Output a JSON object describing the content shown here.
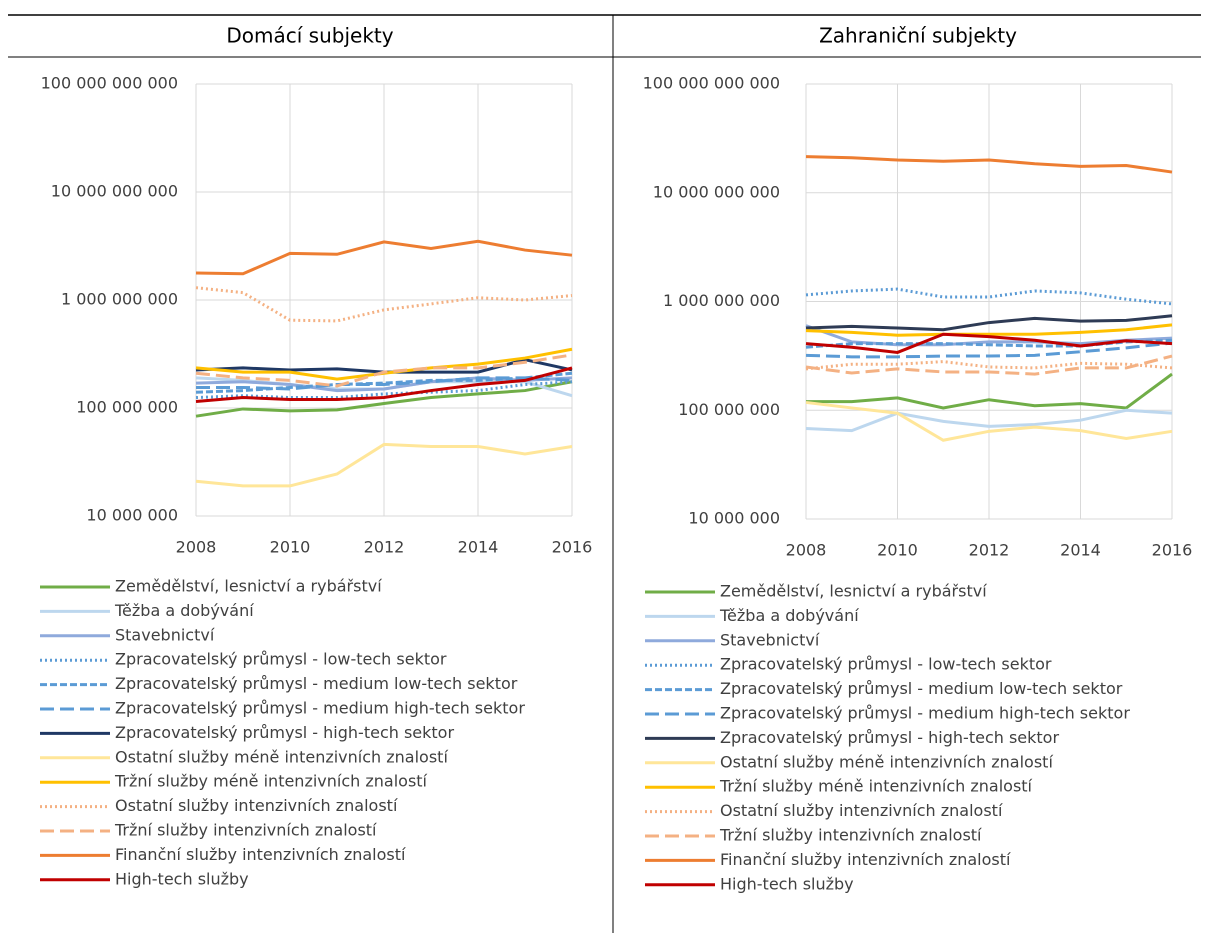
{
  "chart_data": [
    {
      "type": "line",
      "title": "Domácí subjekty",
      "log_scale": true,
      "grid": true,
      "x": [
        2008,
        2009,
        2010,
        2011,
        2012,
        2013,
        2014,
        2015,
        2016
      ],
      "xlim": [
        2008,
        2016
      ],
      "xticks": [
        2008,
        2010,
        2012,
        2014,
        2016
      ],
      "ylim": [
        10000000,
        100000000000
      ],
      "yticks": [
        {
          "value": 10000000,
          "label": "10 000 000"
        },
        {
          "value": 100000000,
          "label": "100 000 000"
        },
        {
          "value": 1000000000,
          "label": "1 000 000 000"
        },
        {
          "value": 10000000000,
          "label": "10 000 000 000"
        },
        {
          "value": 100000000000,
          "label": "100 000 000 000"
        }
      ],
      "series": [
        {
          "name": "Zemědělství, lesnictví a rybářství",
          "color": "#70ad47",
          "dash": "solid",
          "values": [
            84000000,
            98000000,
            94000000,
            96000000,
            110000000,
            125000000,
            135000000,
            145000000,
            175000000
          ]
        },
        {
          "name": "Těžba a dobývání",
          "color": "#bdd7ee",
          "dash": "solid",
          "values": [
            190000000,
            180000000,
            165000000,
            150000000,
            150000000,
            175000000,
            175000000,
            175000000,
            130000000
          ]
        },
        {
          "name": "Stavebnictví",
          "color": "#8faadc",
          "dash": "solid",
          "values": [
            170000000,
            175000000,
            165000000,
            145000000,
            150000000,
            175000000,
            190000000,
            180000000,
            190000000
          ]
        },
        {
          "name": "Zpracovatelský průmysl - low-tech sektor",
          "color": "#5b9bd5",
          "dash": "dotted",
          "values": [
            125000000,
            130000000,
            125000000,
            125000000,
            135000000,
            140000000,
            145000000,
            165000000,
            175000000
          ]
        },
        {
          "name": "Zpracovatelský průmysl - medium low-tech sektor",
          "color": "#5b9bd5",
          "dash": "dashed",
          "values": [
            140000000,
            145000000,
            155000000,
            165000000,
            170000000,
            180000000,
            180000000,
            190000000,
            210000000
          ]
        },
        {
          "name": "Zpracovatelský průmysl - medium high-tech sektor",
          "color": "#5b9bd5",
          "dash": "longdash",
          "values": [
            155000000,
            155000000,
            150000000,
            165000000,
            165000000,
            175000000,
            190000000,
            190000000,
            180000000
          ]
        },
        {
          "name": "Zpracovatelský průmysl - high-tech sektor",
          "color": "#1f3864",
          "dash": "solid",
          "values": [
            225000000,
            235000000,
            225000000,
            230000000,
            215000000,
            215000000,
            215000000,
            280000000,
            225000000
          ]
        },
        {
          "name": "Ostatní služby méně intenzivních znalostí",
          "color": "#ffe699",
          "dash": "solid",
          "values": [
            21000000,
            19000000,
            19000000,
            24500000,
            46000000,
            44000000,
            44000000,
            37500000,
            44000000
          ]
        },
        {
          "name": "Tržní služby méně intenzivních znalostí",
          "color": "#ffc000",
          "dash": "solid",
          "values": [
            235000000,
            215000000,
            215000000,
            185000000,
            210000000,
            235000000,
            255000000,
            290000000,
            350000000
          ]
        },
        {
          "name": "Ostatní služby intenzivních znalostí",
          "color": "#f4b183",
          "dash": "dotted",
          "values": [
            1300000000,
            1170000000,
            650000000,
            640000000,
            810000000,
            920000000,
            1050000000,
            1000000000,
            1100000000
          ]
        },
        {
          "name": "Tržní služby intenzivních znalostí",
          "color": "#f4b183",
          "dash": "longdash",
          "values": [
            210000000,
            190000000,
            180000000,
            160000000,
            215000000,
            235000000,
            235000000,
            265000000,
            310000000
          ]
        },
        {
          "name": "Finanční služby intenzivních znalostí",
          "color": "#ed7d31",
          "dash": "solid",
          "values": [
            1780000000,
            1750000000,
            2700000000,
            2650000000,
            3450000000,
            3000000000,
            3500000000,
            2900000000,
            2600000000
          ]
        },
        {
          "name": "High-tech služby",
          "color": "#c00000",
          "dash": "solid",
          "values": [
            115000000,
            125000000,
            120000000,
            120000000,
            125000000,
            145000000,
            165000000,
            180000000,
            235000000
          ]
        }
      ]
    },
    {
      "type": "line",
      "title": "Zahraniční subjekty",
      "log_scale": true,
      "grid": true,
      "x": [
        2008,
        2009,
        2010,
        2011,
        2012,
        2013,
        2014,
        2015,
        2016
      ],
      "xlim": [
        2008,
        2016
      ],
      "xticks": [
        2008,
        2010,
        2012,
        2014,
        2016
      ],
      "ylim": [
        10000000,
        100000000000
      ],
      "yticks": [
        {
          "value": 10000000,
          "label": "10 000 000"
        },
        {
          "value": 100000000,
          "label": "100 000 000"
        },
        {
          "value": 1000000000,
          "label": "1 000 000 000"
        },
        {
          "value": 10000000000,
          "label": "10 000 000 000"
        },
        {
          "value": 100000000000,
          "label": "100 000 000 000"
        }
      ],
      "series": [
        {
          "name": "Zemědělství, lesnictví a rybářství",
          "color": "#70ad47",
          "dash": "solid",
          "values": [
            120000000,
            120000000,
            130000000,
            105000000,
            125000000,
            110000000,
            115000000,
            105000000,
            215000000
          ]
        },
        {
          "name": "Těžba a dobývání",
          "color": "#bdd7ee",
          "dash": "solid",
          "values": [
            68000000,
            65000000,
            94000000,
            79000000,
            71000000,
            74000000,
            81000000,
            100000000,
            94000000
          ]
        },
        {
          "name": "Stavebnictví",
          "color": "#8faadc",
          "dash": "solid",
          "values": [
            600000000,
            425000000,
            400000000,
            400000000,
            425000000,
            425000000,
            410000000,
            440000000,
            460000000
          ]
        },
        {
          "name": "Zpracovatelský průmysl - low-tech sektor",
          "color": "#5b9bd5",
          "dash": "dotted",
          "values": [
            1150000000,
            1250000000,
            1300000000,
            1100000000,
            1100000000,
            1250000000,
            1200000000,
            1050000000,
            950000000
          ]
        },
        {
          "name": "Zpracovatelský průmysl - medium low-tech sektor",
          "color": "#5b9bd5",
          "dash": "dashed",
          "values": [
            380000000,
            410000000,
            410000000,
            410000000,
            400000000,
            390000000,
            390000000,
            425000000,
            440000000
          ]
        },
        {
          "name": "Zpracovatelský průmysl - medium high-tech sektor",
          "color": "#5b9bd5",
          "dash": "longdash",
          "values": [
            320000000,
            310000000,
            310000000,
            315000000,
            315000000,
            320000000,
            345000000,
            375000000,
            415000000
          ]
        },
        {
          "name": "Zpracovatelský průmysl - high-tech sektor",
          "color": "#2e3b55",
          "dash": "solid",
          "values": [
            570000000,
            590000000,
            570000000,
            550000000,
            640000000,
            700000000,
            660000000,
            670000000,
            740000000
          ]
        },
        {
          "name": "Ostatní služby méně intenzivních znalostí",
          "color": "#ffe699",
          "dash": "solid",
          "values": [
            118000000,
            105000000,
            94000000,
            53000000,
            64000000,
            70000000,
            65000000,
            55000000,
            64000000
          ]
        },
        {
          "name": "Tržní služby méně intenzivních znalostí",
          "color": "#ffc000",
          "dash": "solid",
          "values": [
            540000000,
            520000000,
            490000000,
            500000000,
            500000000,
            500000000,
            520000000,
            550000000,
            610000000
          ]
        },
        {
          "name": "Ostatní služby intenzivních znalostí",
          "color": "#f4b183",
          "dash": "dotted",
          "values": [
            240000000,
            265000000,
            265000000,
            280000000,
            250000000,
            245000000,
            270000000,
            265000000,
            245000000
          ]
        },
        {
          "name": "Tržní služby intenzivních znalostí",
          "color": "#f4b183",
          "dash": "longdash",
          "values": [
            250000000,
            220000000,
            240000000,
            225000000,
            225000000,
            215000000,
            245000000,
            245000000,
            315000000
          ]
        },
        {
          "name": "Finanční služby intenzivních znalostí",
          "color": "#ed7d31",
          "dash": "solid",
          "values": [
            21500000000,
            21000000000,
            20000000000,
            19500000000,
            20000000000,
            18500000000,
            17500000000,
            17800000000,
            15500000000
          ]
        },
        {
          "name": "High-tech služby",
          "color": "#c00000",
          "dash": "solid",
          "values": [
            410000000,
            380000000,
            340000000,
            500000000,
            475000000,
            440000000,
            390000000,
            435000000,
            410000000
          ]
        }
      ]
    }
  ]
}
